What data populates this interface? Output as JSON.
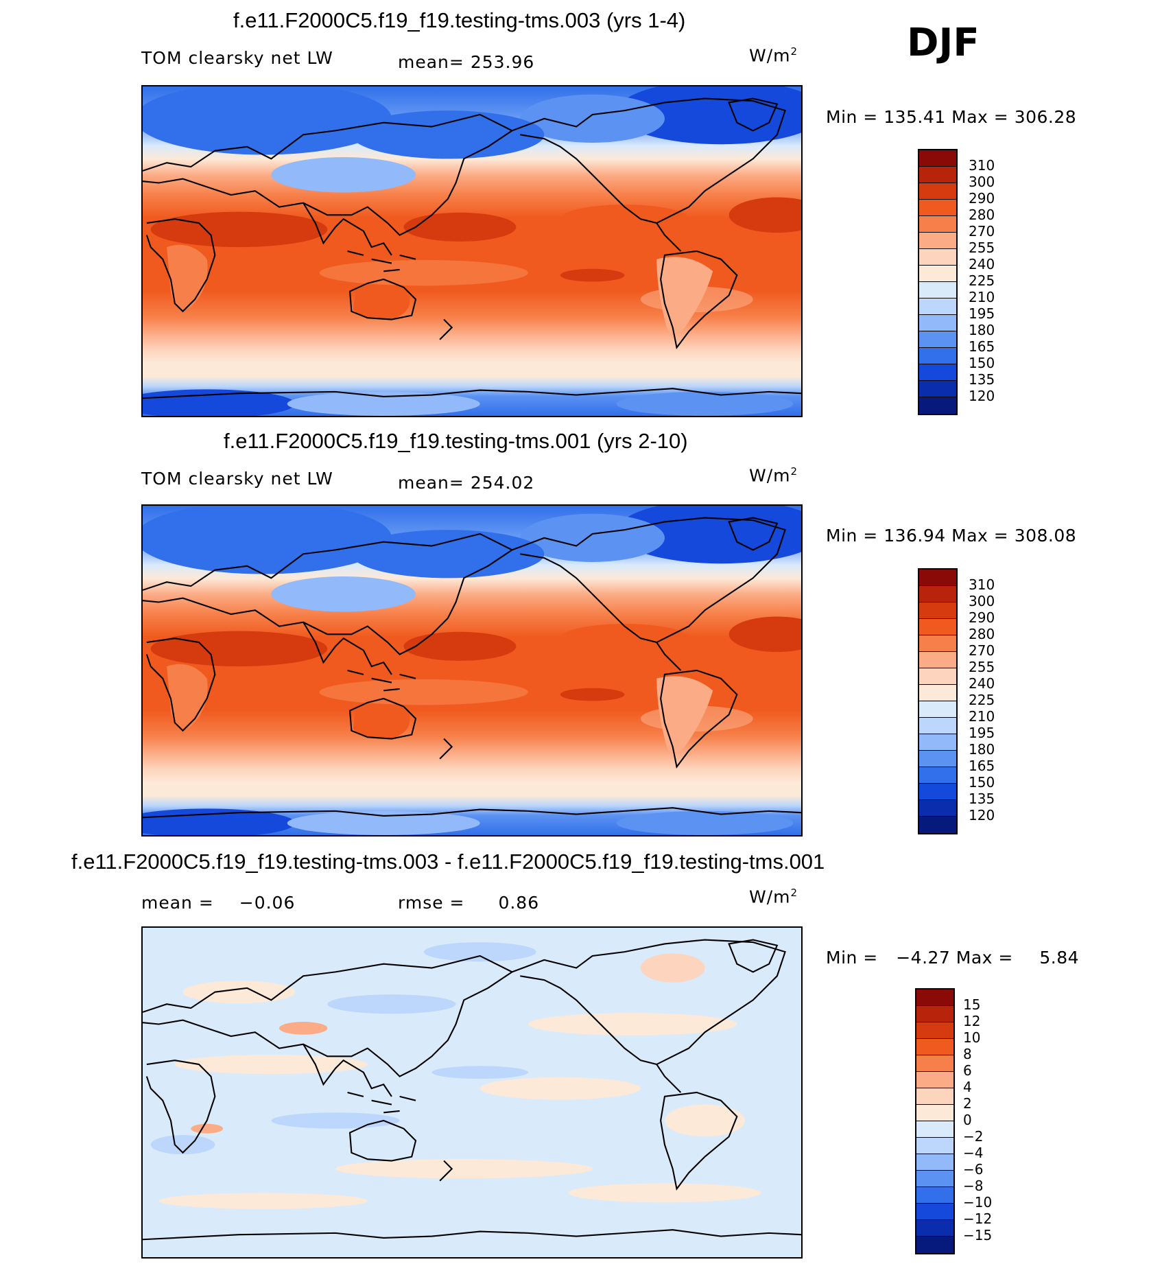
{
  "season": "DJF",
  "panels": [
    {
      "title": "f.e11.F2000C5.f19_f19.testing-tms.003 (yrs 1-4)",
      "field_label": "TOM clearsky net LW",
      "stat_label": "mean=",
      "stat_value": "253.96",
      "units": "W/m",
      "units_exp": "2",
      "min_label": "Min =",
      "min_value": "135.41",
      "max_label": "Max =",
      "max_value": "306.28"
    },
    {
      "title": "f.e11.F2000C5.f19_f19.testing-tms.001 (yrs 2-10)",
      "field_label": "TOM clearsky net LW",
      "stat_label": "mean=",
      "stat_value": "254.02",
      "units": "W/m",
      "units_exp": "2",
      "min_label": "Min =",
      "min_value": "136.94",
      "max_label": "Max =",
      "max_value": "308.08"
    },
    {
      "title": "f.e11.F2000C5.f19_f19.testing-tms.003 - f.e11.F2000C5.f19_f19.testing-tms.001",
      "mean_label": "mean =",
      "mean_value": "−0.06",
      "rmse_label": "rmse =",
      "rmse_value": "0.86",
      "units": "W/m",
      "units_exp": "2",
      "min_label": "Min =",
      "min_value": "−4.27",
      "max_label": "Max =",
      "max_value": "5.84"
    }
  ],
  "colorbars": {
    "absolute": {
      "labels": [
        "310",
        "300",
        "290",
        "280",
        "270",
        "255",
        "240",
        "225",
        "210",
        "195",
        "180",
        "165",
        "150",
        "135",
        "120"
      ],
      "colors": [
        "#8a0a08",
        "#b7230b",
        "#d63b10",
        "#f05a1e",
        "#f7804a",
        "#fbab85",
        "#fdd4bd",
        "#fde9d8",
        "#d9eafb",
        "#bcd7fb",
        "#92b9fa",
        "#5c92f2",
        "#3170ea",
        "#1449dc",
        "#0a2dae",
        "#061a7d"
      ]
    },
    "difference": {
      "labels": [
        "15",
        "12",
        "10",
        "8",
        "6",
        "4",
        "2",
        "0",
        "−2",
        "−4",
        "−6",
        "−8",
        "−10",
        "−12",
        "−15"
      ],
      "colors": [
        "#8a0a08",
        "#b7230b",
        "#d63b10",
        "#f05a1e",
        "#f7804a",
        "#fbab85",
        "#fdd4bd",
        "#fde9d8",
        "#d9eafb",
        "#bcd7fb",
        "#92b9fa",
        "#5c92f2",
        "#3170ea",
        "#1449dc",
        "#0a2dae",
        "#061a7d"
      ]
    }
  }
}
